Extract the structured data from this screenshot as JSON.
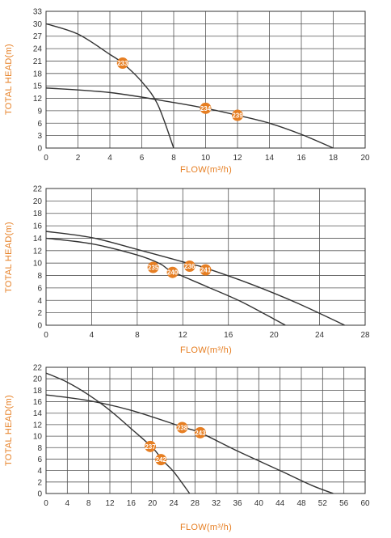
{
  "colors": {
    "accent": "#e67e22",
    "line": "#333333",
    "grid": "#555555"
  },
  "chart_data": [
    {
      "type": "line",
      "xlabel": "FLOW(m³/h)",
      "ylabel": "TOTAL HEAD(m)",
      "xlim": [
        0,
        20
      ],
      "ylim": [
        0,
        33
      ],
      "x_ticks": [
        0,
        2,
        4,
        6,
        8,
        10,
        12,
        14,
        16,
        18,
        20
      ],
      "y_ticks": [
        0,
        3,
        6,
        9,
        12,
        15,
        18,
        21,
        24,
        27,
        30,
        33
      ],
      "grid": true,
      "series": [
        {
          "x": [
            0,
            2,
            4,
            4.8,
            6,
            7,
            8
          ],
          "y": [
            30,
            27.5,
            22.6,
            20.5,
            16,
            10.5,
            0
          ]
        },
        {
          "x": [
            0,
            4,
            8,
            10,
            12,
            14,
            16,
            18
          ],
          "y": [
            14.5,
            13.4,
            11,
            9.6,
            7.9,
            6,
            3.3,
            0
          ]
        }
      ],
      "markers": [
        {
          "label": "233",
          "x": 4.8,
          "y": 20.5
        },
        {
          "label": "234",
          "x": 10,
          "y": 9.6
        },
        {
          "label": "239",
          "x": 12,
          "y": 7.9
        }
      ]
    },
    {
      "type": "line",
      "xlabel": "FLOW(m³/h)",
      "ylabel": "TOTAL HEAD(m)",
      "xlim": [
        0,
        28
      ],
      "ylim": [
        0,
        22
      ],
      "x_ticks": [
        0,
        4,
        8,
        12,
        16,
        20,
        24,
        28
      ],
      "y_ticks": [
        0,
        2,
        4,
        6,
        8,
        10,
        12,
        14,
        16,
        18,
        20,
        22
      ],
      "grid": true,
      "series": [
        {
          "x": [
            0,
            4,
            8,
            10,
            11,
            14,
            17,
            20,
            21
          ],
          "y": [
            14,
            13.1,
            11.3,
            9.9,
            8.7,
            6.3,
            3.9,
            1,
            0
          ]
        },
        {
          "x": [
            0,
            4,
            8,
            12.6,
            14,
            18,
            22,
            26.2
          ],
          "y": [
            15.1,
            14.1,
            12.2,
            9.9,
            9.2,
            6.6,
            3.6,
            0
          ]
        }
      ],
      "markers": [
        {
          "label": "235",
          "x": 9.4,
          "y": 9.3
        },
        {
          "label": "240",
          "x": 11.1,
          "y": 8.5
        },
        {
          "label": "236",
          "x": 12.6,
          "y": 9.5
        },
        {
          "label": "241",
          "x": 14,
          "y": 8.9
        }
      ]
    },
    {
      "type": "line",
      "xlabel": "FLOW(m³/h)",
      "ylabel": "TOTAL HEAD(m)",
      "xlim": [
        0,
        60
      ],
      "ylim": [
        0,
        22
      ],
      "x_ticks": [
        0,
        4,
        8,
        12,
        16,
        20,
        24,
        28,
        32,
        36,
        40,
        44,
        48,
        52,
        56,
        60
      ],
      "y_ticks": [
        0,
        2,
        4,
        6,
        8,
        10,
        12,
        14,
        16,
        18,
        20,
        22
      ],
      "grid": true,
      "series": [
        {
          "x": [
            0,
            4,
            8,
            12,
            16,
            20,
            22,
            24,
            27
          ],
          "y": [
            21,
            19.4,
            17.2,
            14.5,
            11.3,
            8,
            5.7,
            3.8,
            0
          ]
        },
        {
          "x": [
            0,
            8,
            16,
            26,
            29,
            36,
            44,
            50,
            54
          ],
          "y": [
            17.2,
            16.2,
            14.5,
            11.5,
            10.6,
            7.4,
            4,
            1.4,
            0
          ]
        }
      ],
      "markers": [
        {
          "label": "237",
          "x": 19.6,
          "y": 8.2
        },
        {
          "label": "242",
          "x": 21.6,
          "y": 5.9
        },
        {
          "label": "238",
          "x": 25.6,
          "y": 11.5
        },
        {
          "label": "243",
          "x": 29,
          "y": 10.6
        }
      ]
    }
  ]
}
